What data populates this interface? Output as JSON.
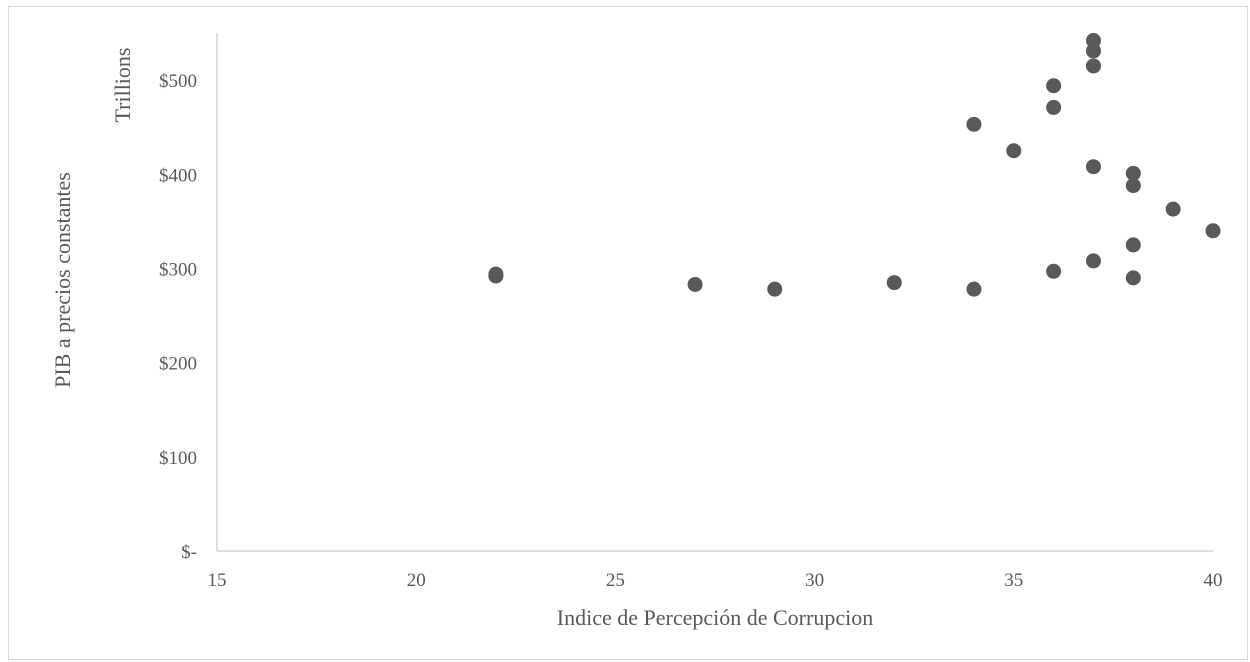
{
  "chart_data": {
    "type": "scatter",
    "title": "",
    "xlabel": "Indice de Percepción de Corrupcion",
    "ylabel": "PIB a precios constantes",
    "y_unit_label": "Trillions",
    "xlim": [
      15,
      40
    ],
    "ylim": [
      0,
      550
    ],
    "x_ticks": [
      15,
      20,
      25,
      30,
      35,
      40
    ],
    "x_tick_labels": [
      "15",
      "20",
      "25",
      "30",
      "35",
      "40"
    ],
    "y_ticks": [
      0,
      100,
      200,
      300,
      400,
      500
    ],
    "y_tick_labels": [
      "$-",
      "$100",
      "$200",
      "$300",
      "$400",
      "$500"
    ],
    "grid": false,
    "legend": "none",
    "marker_color": "#595959",
    "series": [
      {
        "x": [
          22,
          22,
          27,
          29,
          32,
          34,
          34,
          35,
          36,
          36,
          36,
          37,
          37,
          37,
          37,
          37,
          38,
          38,
          38,
          38,
          39,
          40
        ],
        "y": [
          292,
          294,
          283,
          278,
          285,
          278,
          453,
          425,
          297,
          471,
          494,
          308,
          408,
          515,
          531,
          542,
          290,
          325,
          388,
          401,
          363,
          340
        ]
      }
    ]
  }
}
